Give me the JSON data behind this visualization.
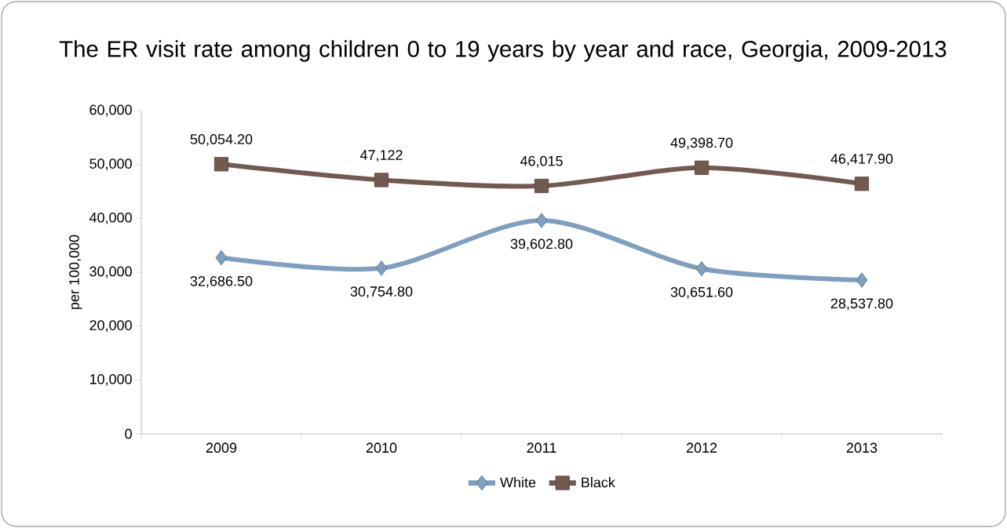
{
  "chart_data": {
    "type": "line",
    "title": "The ER visit rate among children 0 to 19 years by year and race, Georgia, 2009-2013",
    "ylabel": "per 100,000",
    "categories": [
      "2009",
      "2010",
      "2011",
      "2012",
      "2013"
    ],
    "series": [
      {
        "name": "White",
        "color": "#7f9fbf",
        "marker": "diamond",
        "values": [
          32686.5,
          30754.8,
          39602.8,
          30651.6,
          28537.8
        ],
        "value_labels": [
          "32,686.50",
          "30,754.80",
          "39,602.80",
          "30,651.60",
          "28,537.80"
        ]
      },
      {
        "name": "Black",
        "color": "#735a50",
        "marker": "square",
        "values": [
          50054.2,
          47122,
          46015,
          49398.7,
          46417.9
        ],
        "value_labels": [
          "50,054.20",
          "47,122",
          "46,015",
          "49,398.70",
          "46,417.90"
        ]
      }
    ],
    "ylim": [
      0,
      60000
    ],
    "yticks": [
      {
        "value": 0,
        "label": "0"
      },
      {
        "value": 10000,
        "label": "10,000"
      },
      {
        "value": 20000,
        "label": "20,000"
      },
      {
        "value": 30000,
        "label": "30,000"
      },
      {
        "value": 40000,
        "label": "40,000"
      },
      {
        "value": 50000,
        "label": "50,000"
      },
      {
        "value": 60000,
        "label": "60,000"
      }
    ],
    "grid": false,
    "legend": "bottom",
    "line_style": "solid"
  }
}
